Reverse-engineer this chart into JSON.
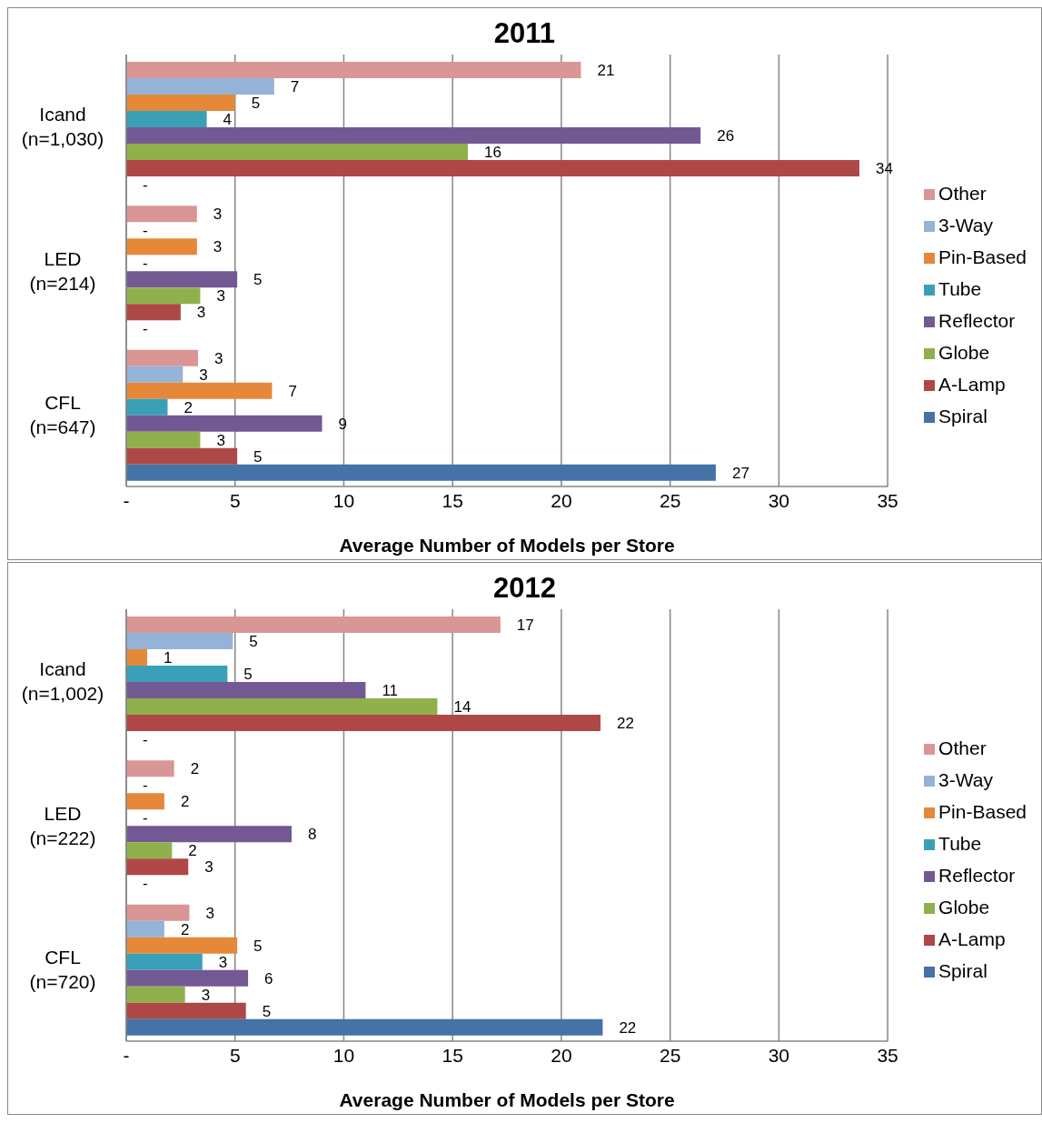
{
  "chart_data": [
    {
      "type": "bar",
      "orientation": "horizontal",
      "title": "2011",
      "xlabel": "Average Number of Models per Store",
      "categories": [
        "Icand (n=1,030)",
        "LED (n=214)",
        "CFL (n=647)"
      ],
      "xlim": [
        0,
        35
      ],
      "xticks": [
        {
          "value": 0,
          "label": "-"
        },
        5,
        10,
        15,
        20,
        25,
        30,
        35
      ],
      "grid": "x",
      "legend": "right",
      "series": [
        {
          "name": "Other",
          "color": "#d99694",
          "values": [
            20.9,
            3.25,
            3.3
          ],
          "value_labels": [
            "21",
            "3",
            "3"
          ]
        },
        {
          "name": "3-Way",
          "color": "#95b3d7",
          "values": [
            6.8,
            0,
            2.6
          ],
          "value_labels": [
            "7",
            "-",
            "3"
          ]
        },
        {
          "name": "Pin-Based",
          "color": "#e6883a",
          "values": [
            5.0,
            3.25,
            6.7
          ],
          "value_labels": [
            "5",
            "3",
            "7"
          ]
        },
        {
          "name": "Tube",
          "color": "#3aa0b8",
          "values": [
            3.7,
            0,
            1.9
          ],
          "value_labels": [
            "4",
            "-",
            "2"
          ]
        },
        {
          "name": "Reflector",
          "color": "#735993",
          "values": [
            26.4,
            5.1,
            9.0
          ],
          "value_labels": [
            "26",
            "5",
            "9"
          ]
        },
        {
          "name": "Globe",
          "color": "#8fb04a",
          "values": [
            15.7,
            3.4,
            3.4
          ],
          "value_labels": [
            "16",
            "3",
            "3"
          ]
        },
        {
          "name": "A-Lamp",
          "color": "#ae4846",
          "values": [
            33.7,
            2.5,
            5.1
          ],
          "value_labels": [
            "34",
            "3",
            "5"
          ]
        },
        {
          "name": "Spiral",
          "color": "#4572a7",
          "values": [
            0,
            0,
            27.1
          ],
          "value_labels": [
            "-",
            "-",
            "27"
          ]
        }
      ]
    },
    {
      "type": "bar",
      "orientation": "horizontal",
      "title": "2012",
      "xlabel": "Average Number of Models per Store",
      "categories": [
        "Icand (n=1,002)",
        "LED (n=222)",
        "CFL (n=720)"
      ],
      "xlim": [
        0,
        35
      ],
      "xticks": [
        {
          "value": 0,
          "label": "-"
        },
        5,
        10,
        15,
        20,
        25,
        30,
        35
      ],
      "grid": "x",
      "legend": "right",
      "series": [
        {
          "name": "Other",
          "color": "#d99694",
          "values": [
            17.2,
            2.2,
            2.9
          ],
          "value_labels": [
            "17",
            "2",
            "3"
          ]
        },
        {
          "name": "3-Way",
          "color": "#95b3d7",
          "values": [
            4.9,
            0,
            1.75
          ],
          "value_labels": [
            "5",
            "-",
            "2"
          ]
        },
        {
          "name": "Pin-Based",
          "color": "#e6883a",
          "values": [
            0.96,
            1.75,
            5.1
          ],
          "value_labels": [
            "1",
            "2",
            "5"
          ]
        },
        {
          "name": "Tube",
          "color": "#3aa0b8",
          "values": [
            4.65,
            0,
            3.5
          ],
          "value_labels": [
            "5",
            "-",
            "3"
          ]
        },
        {
          "name": "Reflector",
          "color": "#735993",
          "values": [
            11.0,
            7.6,
            5.6
          ],
          "value_labels": [
            "11",
            "8",
            "6"
          ]
        },
        {
          "name": "Globe",
          "color": "#8fb04a",
          "values": [
            14.3,
            2.1,
            2.7
          ],
          "value_labels": [
            "14",
            "2",
            "3"
          ]
        },
        {
          "name": "A-Lamp",
          "color": "#ae4846",
          "values": [
            21.8,
            2.85,
            5.5
          ],
          "value_labels": [
            "22",
            "3",
            "5"
          ]
        },
        {
          "name": "Spiral",
          "color": "#4572a7",
          "values": [
            0,
            0,
            21.9
          ],
          "value_labels": [
            "-",
            "-",
            "22"
          ]
        }
      ]
    }
  ]
}
